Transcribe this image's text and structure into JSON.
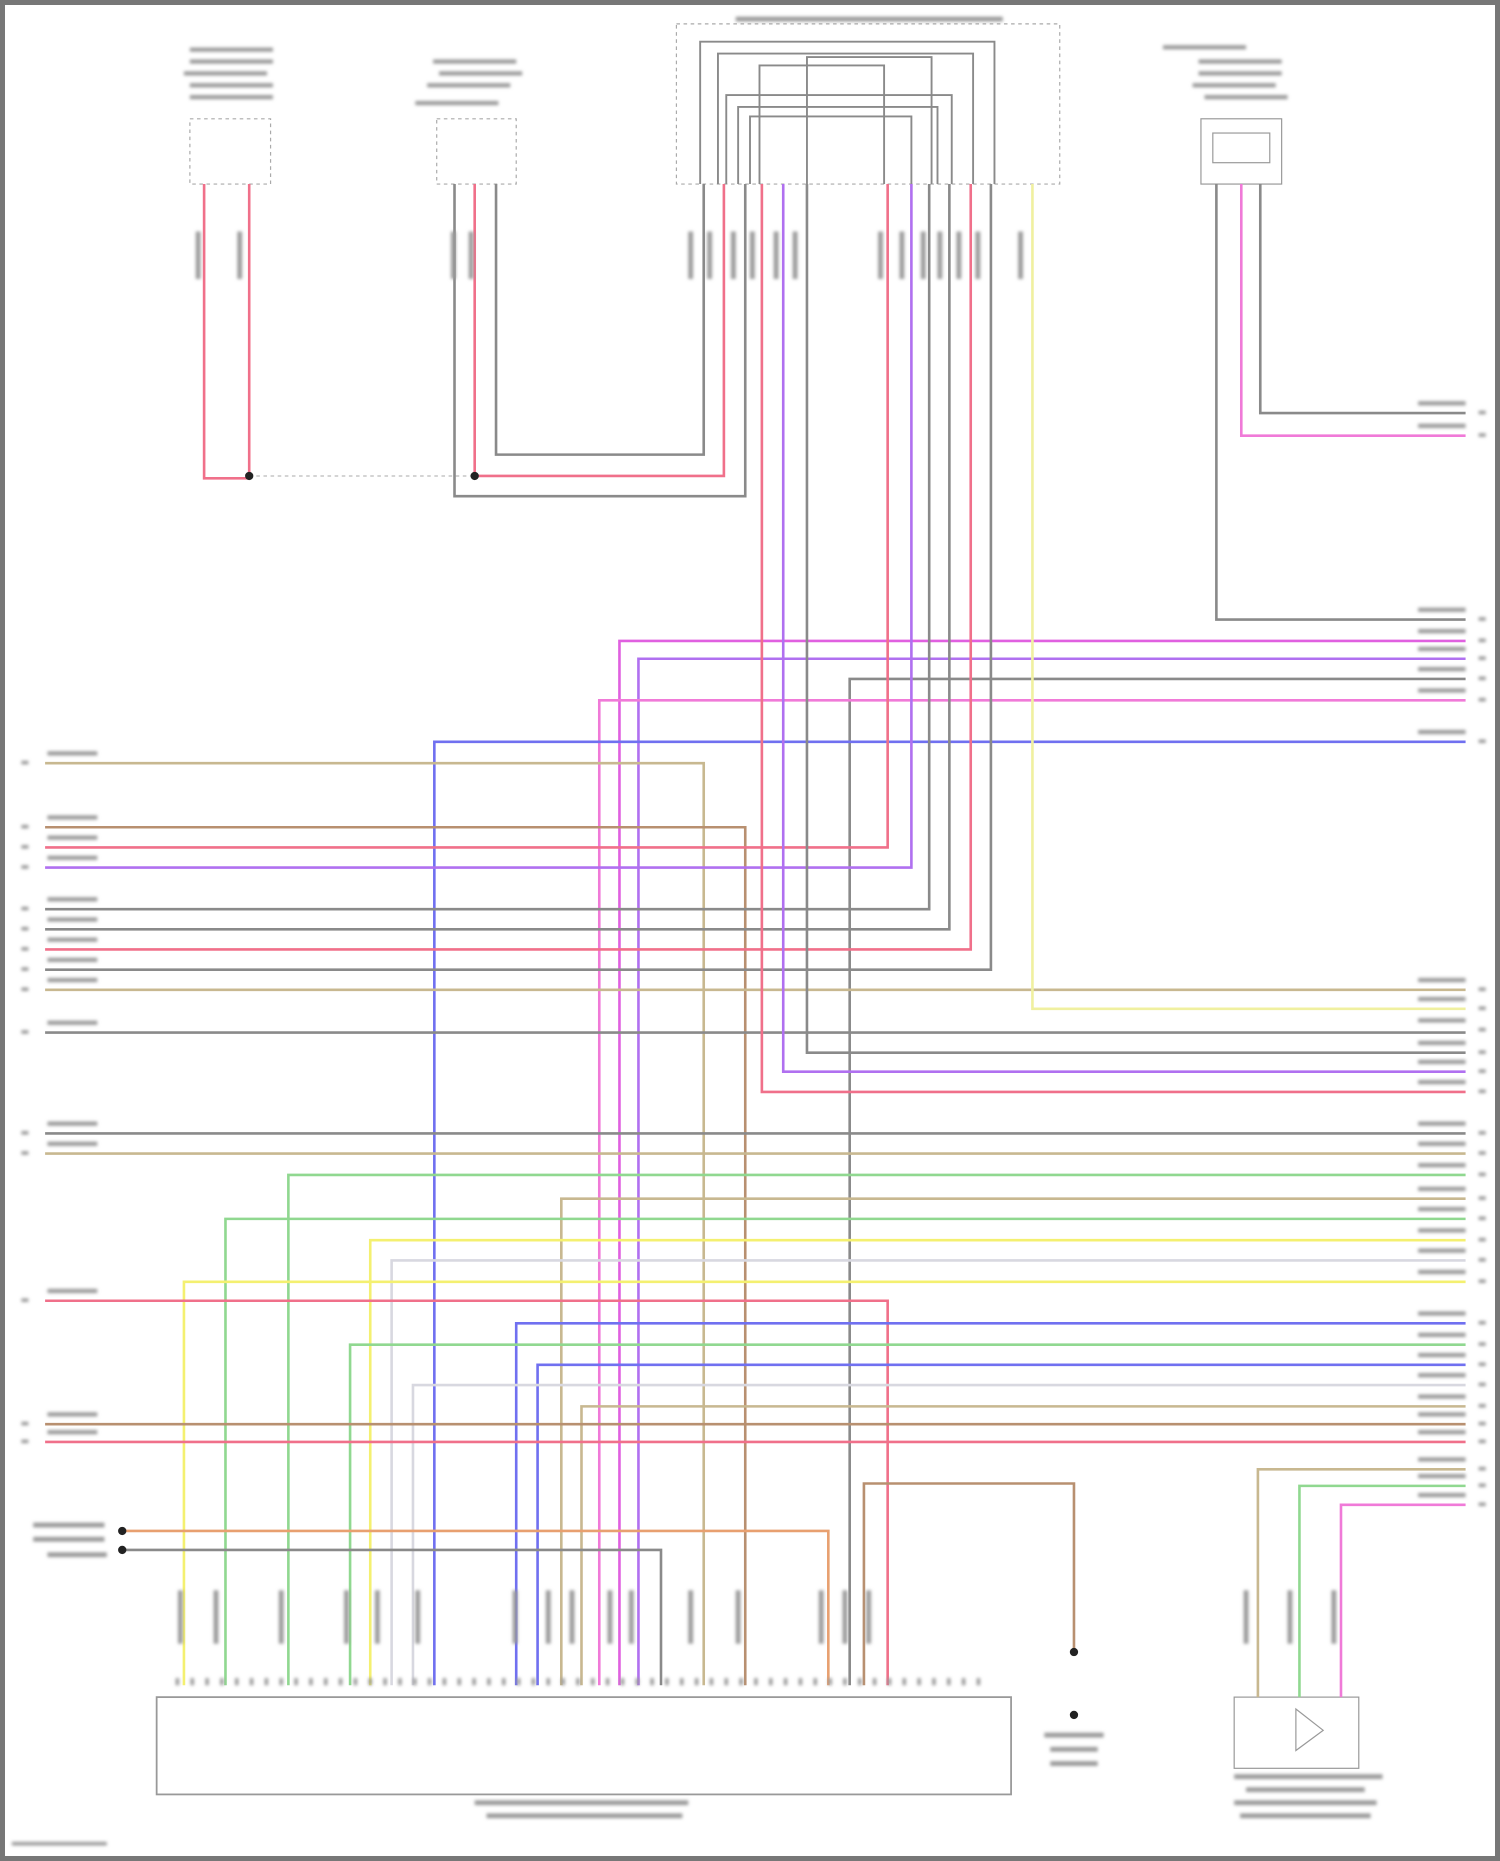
{
  "diagram": {
    "note": "",
    "wire_colors": {
      "red": "#f0708a",
      "grey": "#8a8a8a",
      "pink": "#f07ad8",
      "magenta": "#e060e0",
      "purple": "#b070f0",
      "blue": "#7070f0",
      "tan": "#c8b890",
      "brown": "#b89070",
      "yellow": "#f4f070",
      "green": "#90d890",
      "lightgrey": "#d8d8e0",
      "orange": "#e8a070",
      "paleyellow": "#f0f0a0"
    },
    "components": [
      {
        "id": "component-top-1",
        "style": "dashed"
      },
      {
        "id": "component-top-2",
        "style": "dashed"
      },
      {
        "id": "component-top-3",
        "style": "dashed"
      },
      {
        "id": "component-top-4",
        "style": "solid"
      },
      {
        "id": "engine-control-module",
        "style": "solid"
      },
      {
        "id": "ground-connector",
        "style": "terminal"
      },
      {
        "id": "pump-component",
        "style": "solid"
      }
    ]
  }
}
